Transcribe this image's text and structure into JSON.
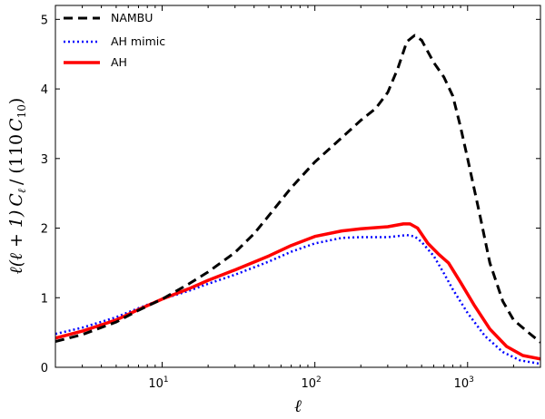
{
  "chart_data": {
    "type": "line",
    "title": "",
    "xlabel": "ℓ",
    "ylabel": "ℓ(ℓ + 1) C_ℓ / (110 C_10)",
    "ylabel_parts": {
      "pre": "ℓ(ℓ + 1)",
      "c": "C",
      "sub_l": "ℓ",
      "mid": "/ (110",
      "sub_10": "10",
      "post": ")"
    },
    "xscale": "log",
    "xlim": [
      2,
      3000
    ],
    "ylim": [
      0,
      5.2
    ],
    "grid": false,
    "legend_position": "top-left",
    "x_ticks": [
      {
        "value": 10,
        "base": "10",
        "exp": "1"
      },
      {
        "value": 100,
        "base": "10",
        "exp": "2"
      },
      {
        "value": 1000,
        "base": "10",
        "exp": "3"
      }
    ],
    "y_ticks": [
      {
        "value": 0,
        "label": "0"
      },
      {
        "value": 1,
        "label": "1"
      },
      {
        "value": 2,
        "label": "2"
      },
      {
        "value": 3,
        "label": "3"
      },
      {
        "value": 4,
        "label": "4"
      },
      {
        "value": 5,
        "label": "5"
      }
    ],
    "series": [
      {
        "name": "NAMBU",
        "color": "#000000",
        "style": "dashed",
        "points": [
          [
            2,
            0.37
          ],
          [
            3,
            0.47
          ],
          [
            5,
            0.65
          ],
          [
            7,
            0.82
          ],
          [
            10,
            0.98
          ],
          [
            15,
            1.2
          ],
          [
            20,
            1.37
          ],
          [
            30,
            1.65
          ],
          [
            40,
            1.92
          ],
          [
            50,
            2.18
          ],
          [
            70,
            2.58
          ],
          [
            100,
            2.95
          ],
          [
            150,
            3.3
          ],
          [
            200,
            3.55
          ],
          [
            250,
            3.72
          ],
          [
            300,
            3.95
          ],
          [
            350,
            4.3
          ],
          [
            400,
            4.68
          ],
          [
            450,
            4.77
          ],
          [
            500,
            4.7
          ],
          [
            600,
            4.38
          ],
          [
            700,
            4.17
          ],
          [
            800,
            3.9
          ],
          [
            900,
            3.45
          ],
          [
            1000,
            3.0
          ],
          [
            1200,
            2.2
          ],
          [
            1400,
            1.5
          ],
          [
            1700,
            0.95
          ],
          [
            2000,
            0.68
          ],
          [
            2500,
            0.5
          ],
          [
            3000,
            0.36
          ]
        ]
      },
      {
        "name": "AH mimic",
        "color": "#0000ff",
        "style": "dotted",
        "points": [
          [
            2,
            0.48
          ],
          [
            3,
            0.57
          ],
          [
            5,
            0.72
          ],
          [
            7,
            0.85
          ],
          [
            10,
            0.98
          ],
          [
            15,
            1.1
          ],
          [
            20,
            1.2
          ],
          [
            30,
            1.33
          ],
          [
            50,
            1.52
          ],
          [
            70,
            1.66
          ],
          [
            100,
            1.78
          ],
          [
            150,
            1.86
          ],
          [
            200,
            1.87
          ],
          [
            300,
            1.87
          ],
          [
            400,
            1.9
          ],
          [
            450,
            1.88
          ],
          [
            500,
            1.8
          ],
          [
            600,
            1.6
          ],
          [
            700,
            1.35
          ],
          [
            800,
            1.12
          ],
          [
            1000,
            0.78
          ],
          [
            1300,
            0.45
          ],
          [
            1700,
            0.22
          ],
          [
            2200,
            0.1
          ],
          [
            3000,
            0.05
          ]
        ]
      },
      {
        "name": "AH",
        "color": "#ff0000",
        "style": "solid",
        "points": [
          [
            2,
            0.42
          ],
          [
            3,
            0.52
          ],
          [
            5,
            0.68
          ],
          [
            7,
            0.83
          ],
          [
            10,
            0.98
          ],
          [
            15,
            1.13
          ],
          [
            20,
            1.25
          ],
          [
            30,
            1.4
          ],
          [
            50,
            1.6
          ],
          [
            70,
            1.75
          ],
          [
            100,
            1.88
          ],
          [
            150,
            1.96
          ],
          [
            200,
            1.99
          ],
          [
            300,
            2.02
          ],
          [
            380,
            2.06
          ],
          [
            420,
            2.06
          ],
          [
            470,
            2.0
          ],
          [
            550,
            1.78
          ],
          [
            650,
            1.62
          ],
          [
            750,
            1.5
          ],
          [
            900,
            1.22
          ],
          [
            1100,
            0.9
          ],
          [
            1400,
            0.55
          ],
          [
            1800,
            0.3
          ],
          [
            2300,
            0.17
          ],
          [
            3000,
            0.12
          ]
        ]
      }
    ]
  }
}
